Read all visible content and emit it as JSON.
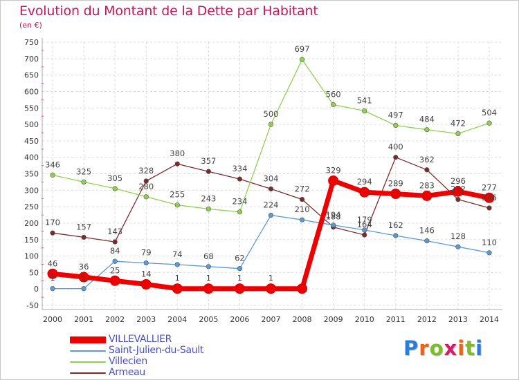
{
  "title": "Evolution du Montant de la Dette par Habitant",
  "subtitle": "(en €)",
  "logo": {
    "text": "Proxiti",
    "letters": [
      "P",
      "r",
      "o",
      "x",
      "i",
      "t",
      "i"
    ],
    "colors": [
      "#2a7fd4",
      "#e8641c",
      "#7bbd2a",
      "#d81c6c",
      "#e8641c",
      "#7bbd2a",
      "#2a7fd4"
    ]
  },
  "chart_data": {
    "type": "line",
    "title": "Evolution du Montant de la Dette par Habitant",
    "ylabel": "(en €)",
    "xlabel": "",
    "x": [
      "2000",
      "2001",
      "2002",
      "2003",
      "2004",
      "2005",
      "2006",
      "2007",
      "2008",
      "2009",
      "2010",
      "2011",
      "2012",
      "2013",
      "2014"
    ],
    "ylim": [
      -50,
      750
    ],
    "yticks": [
      "-50",
      "0",
      "50",
      "100",
      "150",
      "200",
      "250",
      "300",
      "350",
      "400",
      "450",
      "500",
      "550",
      "600",
      "650",
      "700",
      "750"
    ],
    "grid": true,
    "legend_position": "bottom-left",
    "series": [
      {
        "name": "VILLEVALLIER",
        "color": "#ee0000",
        "values": [
          46,
          36,
          25,
          14,
          1,
          1,
          1,
          1,
          null,
          329,
          294,
          289,
          283,
          296,
          277
        ],
        "labels": [
          "46",
          "36",
          "25",
          "14",
          "1",
          "1",
          "1",
          "1",
          "",
          "329",
          "294",
          "289",
          "283",
          "296",
          "277"
        ],
        "line_values": [
          46,
          36,
          25,
          14,
          1,
          1,
          1,
          1,
          1,
          329,
          294,
          289,
          283,
          296,
          277
        ]
      },
      {
        "name": "Saint-Julien-du-Sault",
        "color": "#5b9bd5",
        "values": [
          1,
          1,
          84,
          79,
          74,
          68,
          62,
          224,
          210,
          194,
          179,
          162,
          146,
          128,
          110
        ],
        "labels": [
          "1",
          "1",
          "84",
          "79",
          "74",
          "68",
          "62",
          "224",
          "210",
          "194",
          "179",
          "162",
          "146",
          "128",
          "110"
        ]
      },
      {
        "name": "Villecien",
        "color": "#8fd14f",
        "values": [
          346,
          325,
          305,
          280,
          255,
          243,
          234,
          500,
          697,
          560,
          541,
          497,
          484,
          472,
          504
        ],
        "labels": [
          "346",
          "325",
          "305",
          "280",
          "255",
          "243",
          "234",
          "500",
          "697",
          "560",
          "541",
          "497",
          "484",
          "472",
          "504"
        ]
      },
      {
        "name": "Armeau",
        "color": "#7b2a2a",
        "values": [
          170,
          157,
          143,
          328,
          380,
          357,
          334,
          304,
          272,
          188,
          164,
          400,
          362,
          272,
          246
        ],
        "labels": [
          "170",
          "157",
          "143",
          "328",
          "380",
          "357",
          "334",
          "304",
          "272",
          "188",
          "164",
          "400",
          "362",
          "272",
          "246"
        ]
      }
    ]
  }
}
